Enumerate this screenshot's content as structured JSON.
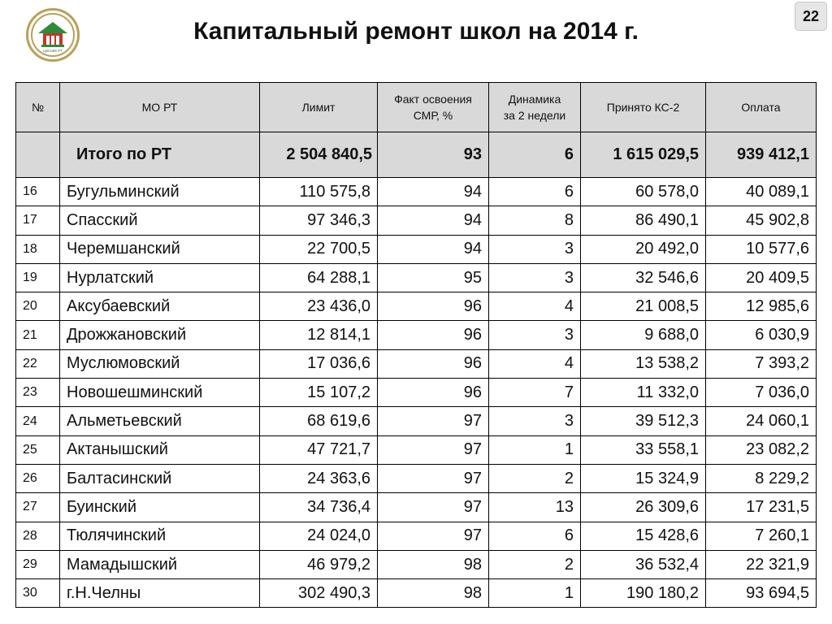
{
  "title": "Капитальный ремонт школ на 2014 г.",
  "page_number": "22",
  "logo": {
    "icon": "school-house-emblem-icon",
    "caption": "ЦКСиКК РТ",
    "colors": {
      "ring": "#b8a05a",
      "roof": "#2e8b3a",
      "house": "#c0392b"
    }
  },
  "table": {
    "headers": {
      "num": "№",
      "mo": "МО РТ",
      "limit": "Лимит",
      "fact": "Факт освоения\nСМР, %",
      "dynamics": "Динамика\nза 2 недели",
      "ks2": "Принято КС-2",
      "payment": "Оплата"
    },
    "total": {
      "name": "Итого по РТ",
      "limit": "2 504 840,5",
      "fact": "93",
      "dynamics": "6",
      "ks2": "1 615 029,5",
      "payment": "939 412,1"
    },
    "rows": [
      {
        "num": "16",
        "name": "Бугульминский",
        "limit": "110 575,8",
        "fact": "94",
        "dynamics": "6",
        "ks2": "60 578,0",
        "payment": "40 089,1"
      },
      {
        "num": "17",
        "name": "Спасский",
        "limit": "97 346,3",
        "fact": "94",
        "dynamics": "8",
        "ks2": "86 490,1",
        "payment": "45 902,8"
      },
      {
        "num": "18",
        "name": "Черемшанский",
        "limit": "22 700,5",
        "fact": "94",
        "dynamics": "3",
        "ks2": "20 492,0",
        "payment": "10 577,6"
      },
      {
        "num": "19",
        "name": "Нурлатский",
        "limit": "64 288,1",
        "fact": "95",
        "dynamics": "3",
        "ks2": "32 546,6",
        "payment": "20 409,5"
      },
      {
        "num": "20",
        "name": "Аксубаевский",
        "limit": "23 436,0",
        "fact": "96",
        "dynamics": "4",
        "ks2": "21 008,5",
        "payment": "12 985,6"
      },
      {
        "num": "21",
        "name": "Дрожжановский",
        "limit": "12 814,1",
        "fact": "96",
        "dynamics": "3",
        "ks2": "9 688,0",
        "payment": "6 030,9"
      },
      {
        "num": "22",
        "name": "Муслюмовский",
        "limit": "17 036,6",
        "fact": "96",
        "dynamics": "4",
        "ks2": "13 538,2",
        "payment": "7 393,2"
      },
      {
        "num": "23",
        "name": "Новошешминский",
        "limit": "15 107,2",
        "fact": "96",
        "dynamics": "7",
        "ks2": "11 332,0",
        "payment": "7 036,0"
      },
      {
        "num": "24",
        "name": "Альметьевский",
        "limit": "68 619,6",
        "fact": "97",
        "dynamics": "3",
        "ks2": "39 512,3",
        "payment": "24 060,1"
      },
      {
        "num": "25",
        "name": "Актанышский",
        "limit": "47 721,7",
        "fact": "97",
        "dynamics": "1",
        "ks2": "33 558,1",
        "payment": "23 082,2"
      },
      {
        "num": "26",
        "name": "Балтасинский",
        "limit": "24 363,6",
        "fact": "97",
        "dynamics": "2",
        "ks2": "15 324,9",
        "payment": "8 229,2"
      },
      {
        "num": "27",
        "name": "Буинский",
        "limit": "34 736,4",
        "fact": "97",
        "dynamics": "13",
        "ks2": "26 309,6",
        "payment": "17 231,5"
      },
      {
        "num": "28",
        "name": "Тюлячинский",
        "limit": "24 024,0",
        "fact": "97",
        "dynamics": "6",
        "ks2": "15 428,6",
        "payment": "7 260,1"
      },
      {
        "num": "29",
        "name": "Мамадышский",
        "limit": "46 979,2",
        "fact": "98",
        "dynamics": "2",
        "ks2": "36 532,4",
        "payment": "22 321,9"
      },
      {
        "num": "30",
        "name": "г.Н.Челны",
        "limit": "302 490,3",
        "fact": "98",
        "dynamics": "1",
        "ks2": "190 180,2",
        "payment": "93 694,5"
      }
    ]
  }
}
